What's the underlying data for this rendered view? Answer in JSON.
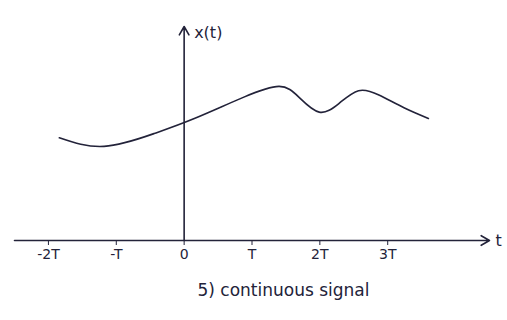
{
  "chart_data": {
    "type": "line",
    "caption": "5) continuous signal",
    "x_label": "t",
    "y_label": "x(t)",
    "x": [
      -1.84,
      -1.18,
      -0.44,
      0.15,
      0.88,
      1.4,
      1.69,
      1.99,
      2.28,
      2.57,
      2.87,
      3.24,
      3.6
    ],
    "values": [
      4.8,
      4.4,
      5.0,
      5.7,
      6.7,
      7.2,
      6.7,
      6.0,
      6.4,
      7.0,
      6.8,
      6.2,
      5.7
    ],
    "xlim": [
      -2.5,
      4.5
    ],
    "ylim": [
      0,
      10
    ],
    "xticks": [
      {
        "value": -2,
        "label": "-2T"
      },
      {
        "value": -1,
        "label": "-T"
      },
      0,
      {
        "value": 1,
        "label": "T"
      },
      {
        "value": 2,
        "label": "2T"
      },
      {
        "value": 3,
        "label": "3T"
      }
    ],
    "tick_labels": "x",
    "color": "#23233a"
  }
}
